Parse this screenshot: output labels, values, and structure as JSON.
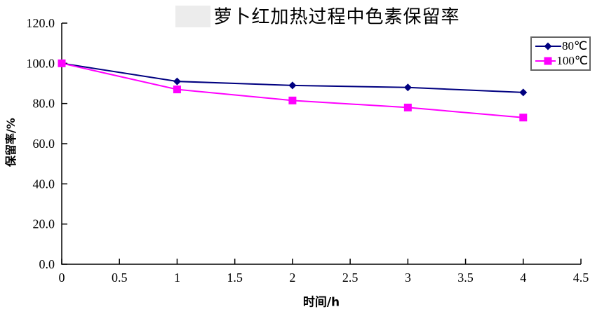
{
  "chart_data": {
    "type": "line",
    "title": "萝卜红加热过程中色素保留率",
    "xlabel": "时间/h",
    "ylabel": "保留率/%",
    "xlim": [
      0,
      4.5
    ],
    "ylim": [
      0,
      120
    ],
    "grid": false,
    "legend_position": "top-right",
    "x_ticks": {
      "values": [
        0,
        0.5,
        1,
        1.5,
        2,
        2.5,
        3,
        3.5,
        4,
        4.5
      ],
      "labels": [
        "0",
        "0.5",
        "1",
        "1.5",
        "2",
        "2.5",
        "3",
        "3.5",
        "4",
        "4.5"
      ]
    },
    "y_ticks": {
      "values": [
        0,
        20,
        40,
        60,
        80,
        100,
        120
      ],
      "labels": [
        "0.0",
        "20.0",
        "40.0",
        "60.0",
        "80.0",
        "100.0",
        "120.0"
      ]
    },
    "x": [
      0,
      1,
      2,
      3,
      4
    ],
    "series": [
      {
        "name": "80℃",
        "values": [
          100,
          91,
          89,
          88,
          85.5
        ],
        "color": "#000080",
        "marker": "diamond"
      },
      {
        "name": "100℃",
        "values": [
          100,
          87,
          81.5,
          78,
          73
        ],
        "color": "#FF00FF",
        "marker": "square"
      }
    ]
  },
  "colors": {
    "axis": "#000000",
    "legend_border": "#666666",
    "background": "#ffffff",
    "artifact": "#ececec"
  }
}
